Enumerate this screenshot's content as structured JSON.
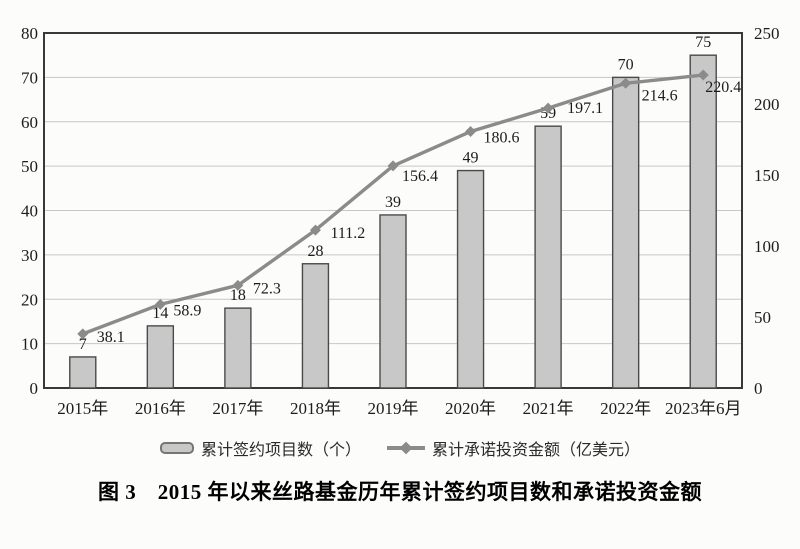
{
  "chart_data": {
    "type": "combo-bar-line",
    "title": "图 3　2015 年以来丝路基金历年累计签约项目数和承诺投资金额",
    "categories": [
      "2015年",
      "2016年",
      "2017年",
      "2018年",
      "2019年",
      "2020年",
      "2021年",
      "2022年",
      "2023年6月"
    ],
    "series": [
      {
        "name": "累计签约项目数（个）",
        "type": "bar",
        "axis": "left",
        "values": [
          7,
          14,
          18,
          28,
          39,
          49,
          59,
          70,
          75
        ]
      },
      {
        "name": "累计承诺投资金额（亿美元）",
        "type": "line",
        "axis": "right",
        "values": [
          38.1,
          58.9,
          72.3,
          111.2,
          156.4,
          180.6,
          197.1,
          214.6,
          220.4
        ]
      }
    ],
    "left_axis": {
      "min": 0,
      "max": 80,
      "step": 10
    },
    "right_axis": {
      "min": 0,
      "max": 250,
      "step": 50
    },
    "grid": true,
    "legend_position": "bottom",
    "colors": {
      "bar_fill": "#c8c8c8",
      "bar_stroke": "#4a4a4a",
      "line": "#8b8b8b",
      "grid": "#c7c7c7",
      "border": "#383838",
      "text": "#1c1c1c"
    }
  }
}
